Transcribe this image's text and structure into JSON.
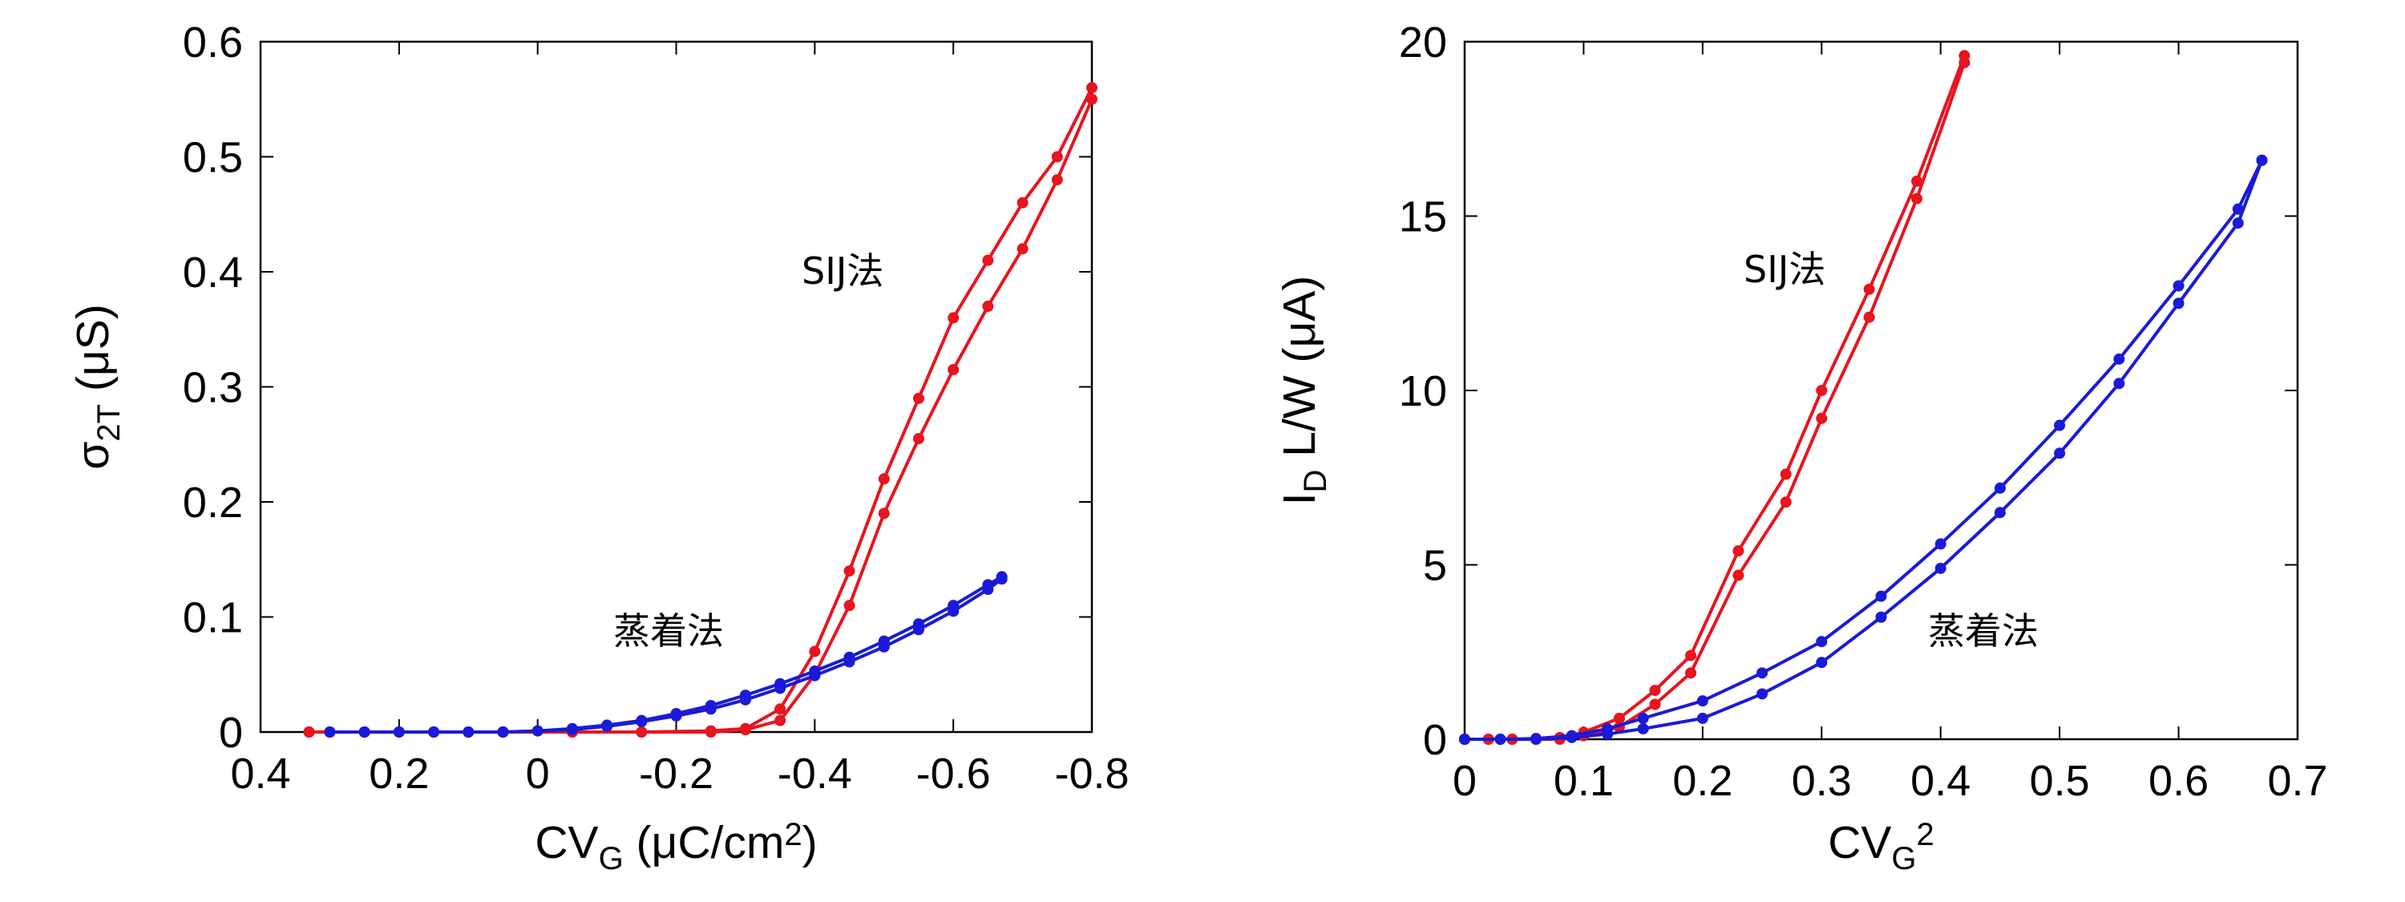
{
  "chart_data": [
    {
      "type": "line",
      "xlabel": [
        "CV",
        "G",
        " (μC/cm",
        "2",
        ")"
      ],
      "ylabel": [
        "σ",
        "2T",
        " (μS)"
      ],
      "xlim": [
        0.4,
        -0.8
      ],
      "xticks": [
        0.4,
        0.2,
        0,
        -0.2,
        -0.4,
        -0.6,
        -0.8
      ],
      "ylim": [
        0,
        0.6
      ],
      "yticks": [
        0,
        0.1,
        0.2,
        0.3,
        0.4,
        0.5,
        0.6
      ],
      "annotations": [
        {
          "text": "SIJ法",
          "color": "#e8141e"
        },
        {
          "text": "蒸着法",
          "color": "#1a1ad8"
        }
      ],
      "series": [
        {
          "color": "#e8141e",
          "x": [
            0.33,
            0.25,
            0.15,
            0.05,
            -0.05,
            -0.15,
            -0.25,
            -0.3,
            -0.35,
            -0.4,
            -0.45,
            -0.5,
            -0.55,
            -0.6,
            -0.65,
            -0.7,
            -0.75,
            -0.8
          ],
          "values": [
            0,
            0,
            0,
            0,
            0,
            0,
            0.001,
            0.003,
            0.02,
            0.07,
            0.14,
            0.22,
            0.29,
            0.36,
            0.41,
            0.46,
            0.5,
            0.56
          ]
        },
        {
          "color": "#e8141e",
          "x": [
            0.33,
            0.25,
            0.15,
            0.05,
            -0.05,
            -0.15,
            -0.25,
            -0.3,
            -0.35,
            -0.4,
            -0.45,
            -0.5,
            -0.55,
            -0.6,
            -0.65,
            -0.7,
            -0.75,
            -0.8
          ],
          "values": [
            0,
            0,
            0,
            0,
            0,
            0,
            0,
            0.002,
            0.01,
            0.05,
            0.11,
            0.19,
            0.255,
            0.315,
            0.37,
            0.42,
            0.48,
            0.55
          ]
        },
        {
          "color": "#1a1ad8",
          "x": [
            0.3,
            0.25,
            0.2,
            0.15,
            0.1,
            0.05,
            0,
            -0.05,
            -0.1,
            -0.15,
            -0.2,
            -0.25,
            -0.3,
            -0.35,
            -0.4,
            -0.45,
            -0.5,
            -0.55,
            -0.6,
            -0.65,
            -0.67
          ],
          "values": [
            0,
            0,
            0,
            0,
            0,
            0,
            0.001,
            0.003,
            0.006,
            0.01,
            0.016,
            0.023,
            0.032,
            0.042,
            0.053,
            0.065,
            0.079,
            0.094,
            0.11,
            0.128,
            0.135
          ]
        },
        {
          "color": "#1a1ad8",
          "x": [
            0.3,
            0.25,
            0.2,
            0.15,
            0.1,
            0.05,
            0,
            -0.05,
            -0.1,
            -0.15,
            -0.2,
            -0.25,
            -0.3,
            -0.35,
            -0.4,
            -0.45,
            -0.5,
            -0.55,
            -0.6,
            -0.65,
            -0.67
          ],
          "values": [
            0,
            0,
            0,
            0,
            0,
            0,
            0.001,
            0.002,
            0.005,
            0.009,
            0.014,
            0.02,
            0.028,
            0.038,
            0.049,
            0.061,
            0.074,
            0.089,
            0.105,
            0.124,
            0.133
          ]
        }
      ]
    },
    {
      "type": "line",
      "xlabel": [
        "CV",
        "G",
        "2"
      ],
      "ylabel": [
        "I",
        "D",
        " L/W (μA)"
      ],
      "xlim": [
        0,
        0.7
      ],
      "xticks": [
        0,
        0.1,
        0.2,
        0.3,
        0.4,
        0.5,
        0.6,
        0.7
      ],
      "ylim": [
        0,
        20
      ],
      "yticks": [
        0,
        5,
        10,
        15,
        20
      ],
      "annotations": [
        {
          "text": "SIJ法",
          "color": "#e8141e"
        },
        {
          "text": "蒸着法",
          "color": "#1a1ad8"
        }
      ],
      "series": [
        {
          "color": "#e8141e",
          "x": [
            0,
            0.02,
            0.04,
            0.06,
            0.08,
            0.1,
            0.13,
            0.16,
            0.19,
            0.23,
            0.27,
            0.3,
            0.34,
            0.38,
            0.42
          ],
          "values": [
            0,
            0,
            0,
            0,
            0.05,
            0.2,
            0.6,
            1.4,
            2.4,
            5.4,
            7.6,
            10,
            12.9,
            16,
            19.6
          ]
        },
        {
          "color": "#e8141e",
          "x": [
            0,
            0.02,
            0.04,
            0.06,
            0.08,
            0.1,
            0.13,
            0.16,
            0.19,
            0.23,
            0.27,
            0.3,
            0.34,
            0.38,
            0.42
          ],
          "values": [
            0,
            0,
            0,
            0,
            0,
            0.1,
            0.35,
            1,
            1.9,
            4.7,
            6.8,
            9.2,
            12.1,
            15.5,
            19.4
          ]
        },
        {
          "color": "#1a1ad8",
          "x": [
            0,
            0.03,
            0.06,
            0.09,
            0.12,
            0.15,
            0.2,
            0.25,
            0.3,
            0.35,
            0.4,
            0.45,
            0.5,
            0.55,
            0.6,
            0.65,
            0.67
          ],
          "values": [
            0,
            0,
            0.02,
            0.1,
            0.3,
            0.6,
            1.1,
            1.9,
            2.8,
            4.1,
            5.6,
            7.2,
            9,
            10.9,
            13,
            15.2,
            16.6
          ]
        },
        {
          "color": "#1a1ad8",
          "x": [
            0,
            0.03,
            0.06,
            0.09,
            0.12,
            0.15,
            0.2,
            0.25,
            0.3,
            0.35,
            0.4,
            0.45,
            0.5,
            0.55,
            0.6,
            0.65,
            0.67
          ],
          "values": [
            0,
            0,
            0,
            0.05,
            0.15,
            0.3,
            0.6,
            1.3,
            2.2,
            3.5,
            4.9,
            6.5,
            8.2,
            10.2,
            12.5,
            14.8,
            16.6
          ]
        }
      ]
    }
  ]
}
